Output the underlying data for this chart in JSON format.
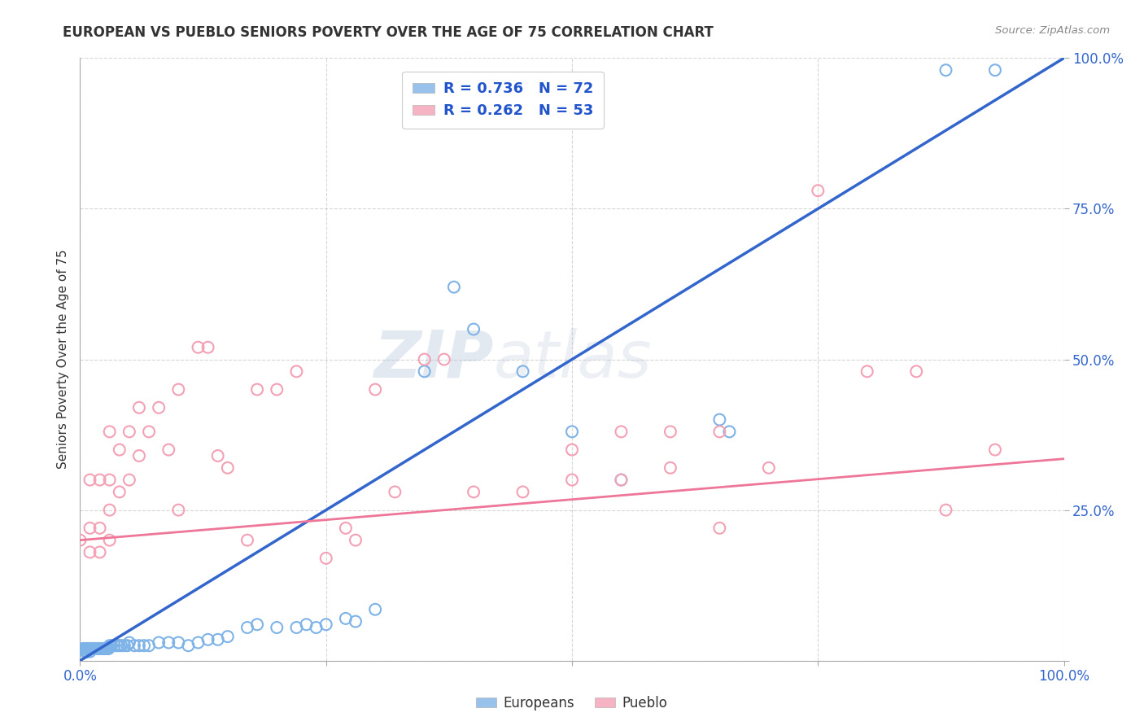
{
  "title": "EUROPEAN VS PUEBLO SENIORS POVERTY OVER THE AGE OF 75 CORRELATION CHART",
  "source": "Source: ZipAtlas.com",
  "ylabel": "Seniors Poverty Over the Age of 75",
  "xlim": [
    0.0,
    1.0
  ],
  "ylim": [
    0.0,
    1.0
  ],
  "xticks": [
    0.0,
    0.25,
    0.5,
    0.75,
    1.0
  ],
  "yticks": [
    0.0,
    0.25,
    0.5,
    0.75,
    1.0
  ],
  "legend_european_label": "Europeans",
  "legend_pueblo_label": "Pueblo",
  "european_R": "0.736",
  "european_N": "72",
  "pueblo_R": "0.262",
  "pueblo_N": "53",
  "european_color": "#7EB3E8",
  "pueblo_color": "#F4A0B5",
  "european_line_color": "#3366CC",
  "pueblo_line_color": "#EE7799",
  "watermark_zip": "ZIP",
  "watermark_atlas": "atlas",
  "background_color": "#FFFFFF",
  "grid_color": "#CCCCCC",
  "eu_line_x": [
    0.0,
    1.0
  ],
  "eu_line_y": [
    0.0,
    1.0
  ],
  "pu_line_x": [
    0.0,
    1.0
  ],
  "pu_line_y": [
    0.2,
    0.335
  ],
  "european_scatter": [
    [
      0.003,
      0.02
    ],
    [
      0.004,
      0.02
    ],
    [
      0.005,
      0.02
    ],
    [
      0.005,
      0.015
    ],
    [
      0.006,
      0.015
    ],
    [
      0.006,
      0.02
    ],
    [
      0.007,
      0.02
    ],
    [
      0.007,
      0.015
    ],
    [
      0.008,
      0.02
    ],
    [
      0.009,
      0.02
    ],
    [
      0.01,
      0.02
    ],
    [
      0.01,
      0.015
    ],
    [
      0.011,
      0.02
    ],
    [
      0.012,
      0.02
    ],
    [
      0.013,
      0.02
    ],
    [
      0.014,
      0.02
    ],
    [
      0.015,
      0.02
    ],
    [
      0.016,
      0.02
    ],
    [
      0.017,
      0.02
    ],
    [
      0.018,
      0.02
    ],
    [
      0.019,
      0.02
    ],
    [
      0.02,
      0.02
    ],
    [
      0.021,
      0.02
    ],
    [
      0.022,
      0.02
    ],
    [
      0.023,
      0.02
    ],
    [
      0.024,
      0.02
    ],
    [
      0.025,
      0.02
    ],
    [
      0.026,
      0.02
    ],
    [
      0.027,
      0.02
    ],
    [
      0.028,
      0.02
    ],
    [
      0.029,
      0.02
    ],
    [
      0.03,
      0.025
    ],
    [
      0.032,
      0.025
    ],
    [
      0.035,
      0.025
    ],
    [
      0.038,
      0.025
    ],
    [
      0.04,
      0.025
    ],
    [
      0.042,
      0.025
    ],
    [
      0.045,
      0.025
    ],
    [
      0.048,
      0.025
    ],
    [
      0.05,
      0.03
    ],
    [
      0.055,
      0.025
    ],
    [
      0.06,
      0.025
    ],
    [
      0.065,
      0.025
    ],
    [
      0.07,
      0.025
    ],
    [
      0.08,
      0.03
    ],
    [
      0.09,
      0.03
    ],
    [
      0.1,
      0.03
    ],
    [
      0.11,
      0.025
    ],
    [
      0.12,
      0.03
    ],
    [
      0.13,
      0.035
    ],
    [
      0.14,
      0.035
    ],
    [
      0.15,
      0.04
    ],
    [
      0.17,
      0.055
    ],
    [
      0.18,
      0.06
    ],
    [
      0.2,
      0.055
    ],
    [
      0.22,
      0.055
    ],
    [
      0.23,
      0.06
    ],
    [
      0.24,
      0.055
    ],
    [
      0.25,
      0.06
    ],
    [
      0.27,
      0.07
    ],
    [
      0.28,
      0.065
    ],
    [
      0.3,
      0.085
    ],
    [
      0.35,
      0.48
    ],
    [
      0.38,
      0.62
    ],
    [
      0.4,
      0.55
    ],
    [
      0.45,
      0.48
    ],
    [
      0.5,
      0.38
    ],
    [
      0.55,
      0.3
    ],
    [
      0.65,
      0.4
    ],
    [
      0.66,
      0.38
    ],
    [
      0.88,
      0.98
    ],
    [
      0.93,
      0.98
    ]
  ],
  "pueblo_scatter": [
    [
      0.0,
      0.2
    ],
    [
      0.01,
      0.3
    ],
    [
      0.01,
      0.22
    ],
    [
      0.01,
      0.18
    ],
    [
      0.02,
      0.3
    ],
    [
      0.02,
      0.22
    ],
    [
      0.02,
      0.18
    ],
    [
      0.03,
      0.38
    ],
    [
      0.03,
      0.3
    ],
    [
      0.03,
      0.25
    ],
    [
      0.03,
      0.2
    ],
    [
      0.04,
      0.35
    ],
    [
      0.04,
      0.28
    ],
    [
      0.05,
      0.38
    ],
    [
      0.05,
      0.3
    ],
    [
      0.06,
      0.42
    ],
    [
      0.06,
      0.34
    ],
    [
      0.07,
      0.38
    ],
    [
      0.08,
      0.42
    ],
    [
      0.09,
      0.35
    ],
    [
      0.1,
      0.45
    ],
    [
      0.1,
      0.25
    ],
    [
      0.12,
      0.52
    ],
    [
      0.13,
      0.52
    ],
    [
      0.14,
      0.34
    ],
    [
      0.15,
      0.32
    ],
    [
      0.17,
      0.2
    ],
    [
      0.18,
      0.45
    ],
    [
      0.2,
      0.45
    ],
    [
      0.22,
      0.48
    ],
    [
      0.25,
      0.17
    ],
    [
      0.27,
      0.22
    ],
    [
      0.28,
      0.2
    ],
    [
      0.3,
      0.45
    ],
    [
      0.32,
      0.28
    ],
    [
      0.35,
      0.5
    ],
    [
      0.37,
      0.5
    ],
    [
      0.4,
      0.28
    ],
    [
      0.45,
      0.28
    ],
    [
      0.5,
      0.35
    ],
    [
      0.5,
      0.3
    ],
    [
      0.55,
      0.38
    ],
    [
      0.55,
      0.3
    ],
    [
      0.6,
      0.38
    ],
    [
      0.6,
      0.32
    ],
    [
      0.65,
      0.38
    ],
    [
      0.65,
      0.22
    ],
    [
      0.7,
      0.32
    ],
    [
      0.75,
      0.78
    ],
    [
      0.8,
      0.48
    ],
    [
      0.85,
      0.48
    ],
    [
      0.88,
      0.25
    ],
    [
      0.93,
      0.35
    ]
  ]
}
